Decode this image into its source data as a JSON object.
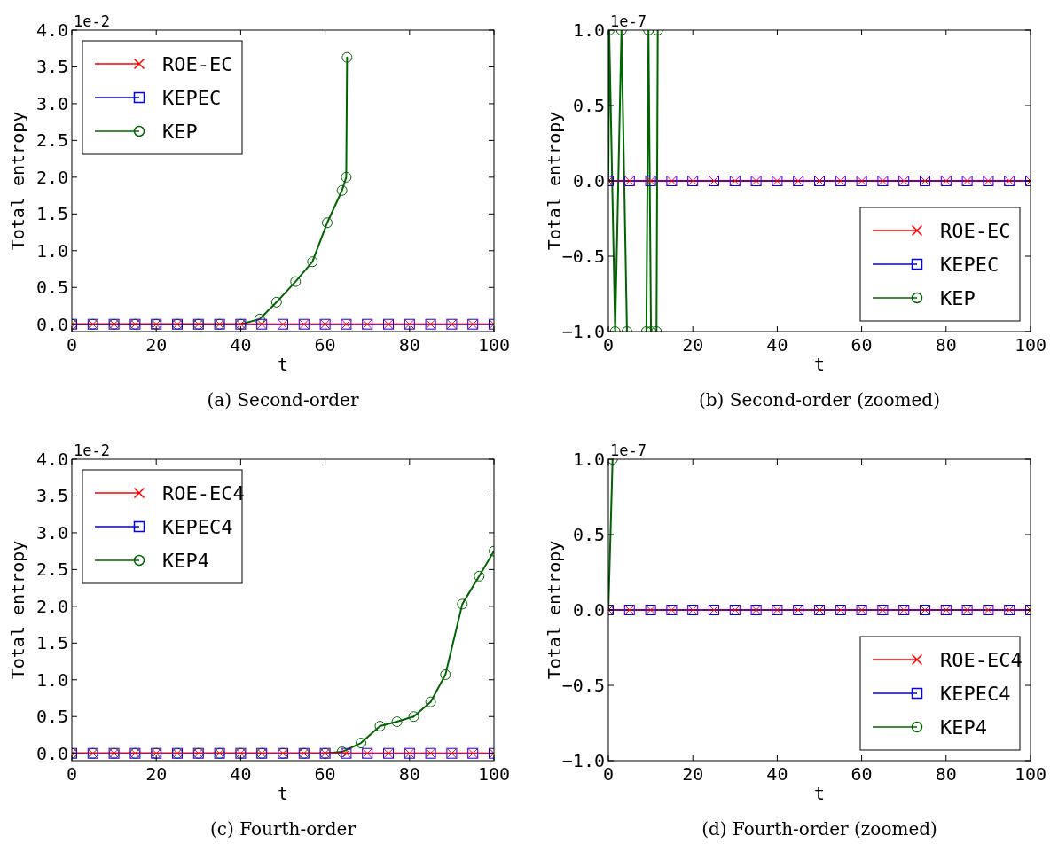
{
  "chart_data": [
    {
      "type": "line",
      "title": "(a) Second-order",
      "xlabel": "t",
      "ylabel": "Total entropy",
      "annotations": [
        "1e-2"
      ],
      "xlim": [
        0,
        100
      ],
      "xticks": [
        0,
        20,
        40,
        60,
        80,
        100
      ],
      "ylim": [
        -0.1,
        4.0
      ],
      "yticks": [
        {
          "value": 0,
          "label": "0.0"
        },
        0.5,
        {
          "value": 1,
          "label": "1.0"
        },
        1.5,
        {
          "value": 2,
          "label": "2.0"
        },
        2.5,
        {
          "value": 3,
          "label": "3.0"
        },
        3.5,
        {
          "value": 4,
          "label": "4.0"
        }
      ],
      "grid": false,
      "legend": "top left",
      "line_style": "solid",
      "series": [
        {
          "name": "ROE-EC",
          "color": "#ff0000",
          "marker": "cross",
          "x": [
            0,
            5,
            10,
            15,
            20,
            25,
            30,
            35,
            40,
            45,
            50,
            55,
            60,
            65,
            70,
            75,
            80,
            85,
            90,
            95,
            100
          ],
          "values": [
            0,
            0,
            0,
            0,
            0,
            0,
            0,
            0,
            0,
            0,
            0,
            0,
            0,
            0,
            0,
            0,
            0,
            0,
            0,
            0,
            0
          ]
        },
        {
          "name": "KEPEC",
          "color": "#0000ff",
          "marker": "square",
          "x": [
            0,
            5,
            10,
            15,
            20,
            25,
            30,
            35,
            40,
            45,
            50,
            55,
            60,
            65,
            70,
            75,
            80,
            85,
            90,
            95,
            100
          ],
          "values": [
            0,
            0,
            0,
            0,
            0,
            0,
            0,
            0,
            0,
            0,
            0,
            0,
            0,
            0,
            0,
            0,
            0,
            0,
            0,
            0,
            0
          ]
        },
        {
          "name": "KEP",
          "color": "#006400",
          "marker": "circle",
          "x": [
            0,
            5,
            10,
            15,
            20,
            25,
            30,
            35,
            40,
            44.5,
            48.5,
            53,
            57,
            60.5,
            64,
            65,
            65.2
          ],
          "values": [
            0,
            0,
            0,
            0,
            0,
            0,
            0,
            0,
            0,
            0.07,
            0.3,
            0.58,
            0.85,
            1.38,
            1.82,
            2.0,
            3.63
          ]
        }
      ]
    },
    {
      "type": "line",
      "title": "(b) Second-order (zoomed)",
      "xlabel": "t",
      "ylabel": "Total entropy",
      "annotations": [
        "1e-7"
      ],
      "xlim": [
        0,
        100
      ],
      "xticks": [
        0,
        20,
        40,
        60,
        80,
        100
      ],
      "ylim": [
        -1.0,
        1.0
      ],
      "yticks": [
        {
          "value": -1,
          "label": "−1.0"
        },
        {
          "value": -0.5,
          "label": "−0.5"
        },
        {
          "value": 0,
          "label": "0.0"
        },
        0.5,
        {
          "value": 1,
          "label": "1.0"
        }
      ],
      "grid": false,
      "legend": "bottom right",
      "line_style": "solid",
      "series": [
        {
          "name": "ROE-EC",
          "color": "#ff0000",
          "marker": "cross",
          "x": [
            0,
            5,
            10,
            15,
            20,
            25,
            30,
            35,
            40,
            45,
            50,
            55,
            60,
            65,
            70,
            75,
            80,
            85,
            90,
            95,
            100
          ],
          "values": [
            0,
            0,
            0,
            0,
            0,
            0,
            0,
            0,
            0,
            0,
            0,
            0,
            0,
            0,
            0,
            0,
            0,
            0,
            0,
            0,
            0
          ]
        },
        {
          "name": "KEPEC",
          "color": "#0000ff",
          "marker": "square",
          "x": [
            0,
            5,
            10,
            15,
            20,
            25,
            30,
            35,
            40,
            45,
            50,
            55,
            60,
            65,
            70,
            75,
            80,
            85,
            90,
            95,
            100
          ],
          "values": [
            0,
            0,
            0,
            0,
            0,
            0,
            0,
            0,
            0,
            0,
            0,
            0,
            0,
            0,
            0,
            0,
            0,
            0,
            0,
            0,
            0
          ]
        },
        {
          "name": "KEP",
          "color": "#006400",
          "marker": "circle",
          "x": [
            0,
            0.2,
            1.6,
            3.1,
            4.4,
            6,
            9.0,
            9.5,
            10.1,
            11,
            11.4,
            11.7
          ],
          "values": [
            0,
            1,
            -1,
            1,
            -1,
            null,
            -1,
            1,
            -1,
            null,
            -1,
            1
          ]
        }
      ]
    },
    {
      "type": "line",
      "title": "(c) Fourth-order",
      "xlabel": "t",
      "ylabel": "Total entropy",
      "annotations": [
        "1e-2"
      ],
      "xlim": [
        0,
        100
      ],
      "xticks": [
        0,
        20,
        40,
        60,
        80,
        100
      ],
      "ylim": [
        -0.1,
        4.0
      ],
      "yticks": [
        {
          "value": 0,
          "label": "0.0"
        },
        0.5,
        {
          "value": 1,
          "label": "1.0"
        },
        1.5,
        {
          "value": 2,
          "label": "2.0"
        },
        2.5,
        {
          "value": 3,
          "label": "3.0"
        },
        3.5,
        {
          "value": 4,
          "label": "4.0"
        }
      ],
      "grid": false,
      "legend": "top left",
      "line_style": "solid",
      "series": [
        {
          "name": "ROE-EC4",
          "color": "#ff0000",
          "marker": "cross",
          "x": [
            0,
            5,
            10,
            15,
            20,
            25,
            30,
            35,
            40,
            45,
            50,
            55,
            60,
            65,
            70,
            75,
            80,
            85,
            90,
            95,
            100
          ],
          "values": [
            0,
            0,
            0,
            0,
            0,
            0,
            0,
            0,
            0,
            0,
            0,
            0,
            0,
            0,
            0,
            0,
            0,
            0,
            0,
            0,
            0
          ]
        },
        {
          "name": "KEPEC4",
          "color": "#0000ff",
          "marker": "square",
          "x": [
            0,
            5,
            10,
            15,
            20,
            25,
            30,
            35,
            40,
            45,
            50,
            55,
            60,
            65,
            70,
            75,
            80,
            85,
            90,
            95,
            100
          ],
          "values": [
            0,
            0,
            0,
            0,
            0,
            0,
            0,
            0,
            0,
            0,
            0,
            0,
            0,
            0,
            0,
            0,
            0,
            0,
            0,
            0,
            0
          ]
        },
        {
          "name": "KEP4",
          "color": "#006400",
          "marker": "circle",
          "x": [
            0,
            5,
            10,
            15,
            20,
            25,
            30,
            35,
            40,
            45,
            50,
            55,
            60,
            64,
            68.5,
            73,
            77,
            81,
            85,
            88.5,
            92.5,
            96.5,
            100
          ],
          "values": [
            0,
            0,
            0,
            0,
            0,
            0,
            0,
            0,
            0,
            0,
            0,
            0,
            0,
            0.02,
            0.14,
            0.37,
            0.43,
            0.5,
            0.7,
            1.07,
            2.03,
            2.41,
            2.75
          ]
        }
      ]
    },
    {
      "type": "line",
      "title": "(d) Fourth-order (zoomed)",
      "xlabel": "t",
      "ylabel": "Total entropy",
      "annotations": [
        "1e-7"
      ],
      "xlim": [
        0,
        100
      ],
      "xticks": [
        0,
        20,
        40,
        60,
        80,
        100
      ],
      "ylim": [
        -1.0,
        1.0
      ],
      "yticks": [
        {
          "value": -1,
          "label": "−1.0"
        },
        {
          "value": -0.5,
          "label": "−0.5"
        },
        {
          "value": 0,
          "label": "0.0"
        },
        0.5,
        {
          "value": 1,
          "label": "1.0"
        }
      ],
      "grid": false,
      "legend": "bottom right",
      "line_style": "solid",
      "series": [
        {
          "name": "ROE-EC4",
          "color": "#ff0000",
          "marker": "cross",
          "x": [
            0,
            5,
            10,
            15,
            20,
            25,
            30,
            35,
            40,
            45,
            50,
            55,
            60,
            65,
            70,
            75,
            80,
            85,
            90,
            95,
            100
          ],
          "values": [
            0,
            0,
            0,
            0,
            0,
            0,
            0,
            0,
            0,
            0,
            0,
            0,
            0,
            0,
            0,
            0,
            0,
            0,
            0,
            0,
            0
          ]
        },
        {
          "name": "KEPEC4",
          "color": "#0000ff",
          "marker": "square",
          "x": [
            0,
            5,
            10,
            15,
            20,
            25,
            30,
            35,
            40,
            45,
            50,
            55,
            60,
            65,
            70,
            75,
            80,
            85,
            90,
            95,
            100
          ],
          "values": [
            0,
            0,
            0,
            0,
            0,
            0,
            0,
            0,
            0,
            0,
            0,
            0,
            0,
            0,
            0,
            0,
            0,
            0,
            0,
            0,
            0
          ]
        },
        {
          "name": "KEP4",
          "color": "#006400",
          "marker": "circle",
          "x": [
            0,
            1
          ],
          "values": [
            0,
            1
          ]
        }
      ]
    }
  ]
}
